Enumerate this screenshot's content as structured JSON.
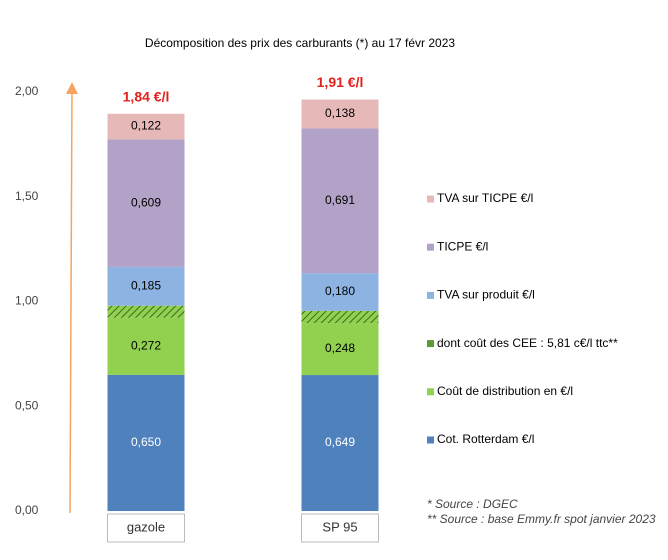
{
  "chart_data": {
    "type": "stacked-bar",
    "title": "Décomposition des prix des carburants (*) au 17 févr 2023",
    "categories": [
      "gazole",
      "SP 95"
    ],
    "series": [
      {
        "name": "Cot. Rotterdam €/l",
        "color": "#4f81bd",
        "values": [
          0.65,
          0.649
        ],
        "value_labels": [
          "0,650",
          "0,649"
        ]
      },
      {
        "name": "Coût de distribution en €/l",
        "color": "#92d050",
        "values": [
          0.272,
          0.248
        ],
        "value_labels": [
          "0,272",
          "0,248"
        ]
      },
      {
        "name": "dont coût des CEE : 5,81 c€/l ttc**",
        "color": "#5e9a33",
        "hatch": true,
        "values": [
          0.0581,
          0.0581
        ]
      },
      {
        "name": "TVA sur produit €/l",
        "color": "#8db3e2",
        "values": [
          0.185,
          0.18
        ],
        "value_labels": [
          "0,185",
          "0,180"
        ]
      },
      {
        "name": "TICPE €/l",
        "color": "#b3a2c7",
        "values": [
          0.609,
          0.691
        ],
        "value_labels": [
          "0,609",
          "0,691"
        ]
      },
      {
        "name": "TVA sur TICPE €/l",
        "color": "#e6b9b8",
        "values": [
          0.122,
          0.138
        ],
        "value_labels": [
          "0,122",
          "0,138"
        ]
      }
    ],
    "totals": {
      "values": [
        1.84,
        1.91
      ],
      "value_labels": [
        "1,84 €/l",
        "1,91 €/l"
      ]
    },
    "ylim": [
      0,
      2
    ],
    "yticks": [
      {
        "value": 0,
        "label": "0,00"
      },
      {
        "value": 0.5,
        "label": "0,50"
      },
      {
        "value": 1,
        "label": "1,00"
      },
      {
        "value": 1.5,
        "label": "1,50"
      },
      {
        "value": 2,
        "label": "2,00"
      }
    ],
    "notes": [
      "* Source : DGEC",
      "** Source : base Emmy.fr spot janvier 2023"
    ]
  }
}
